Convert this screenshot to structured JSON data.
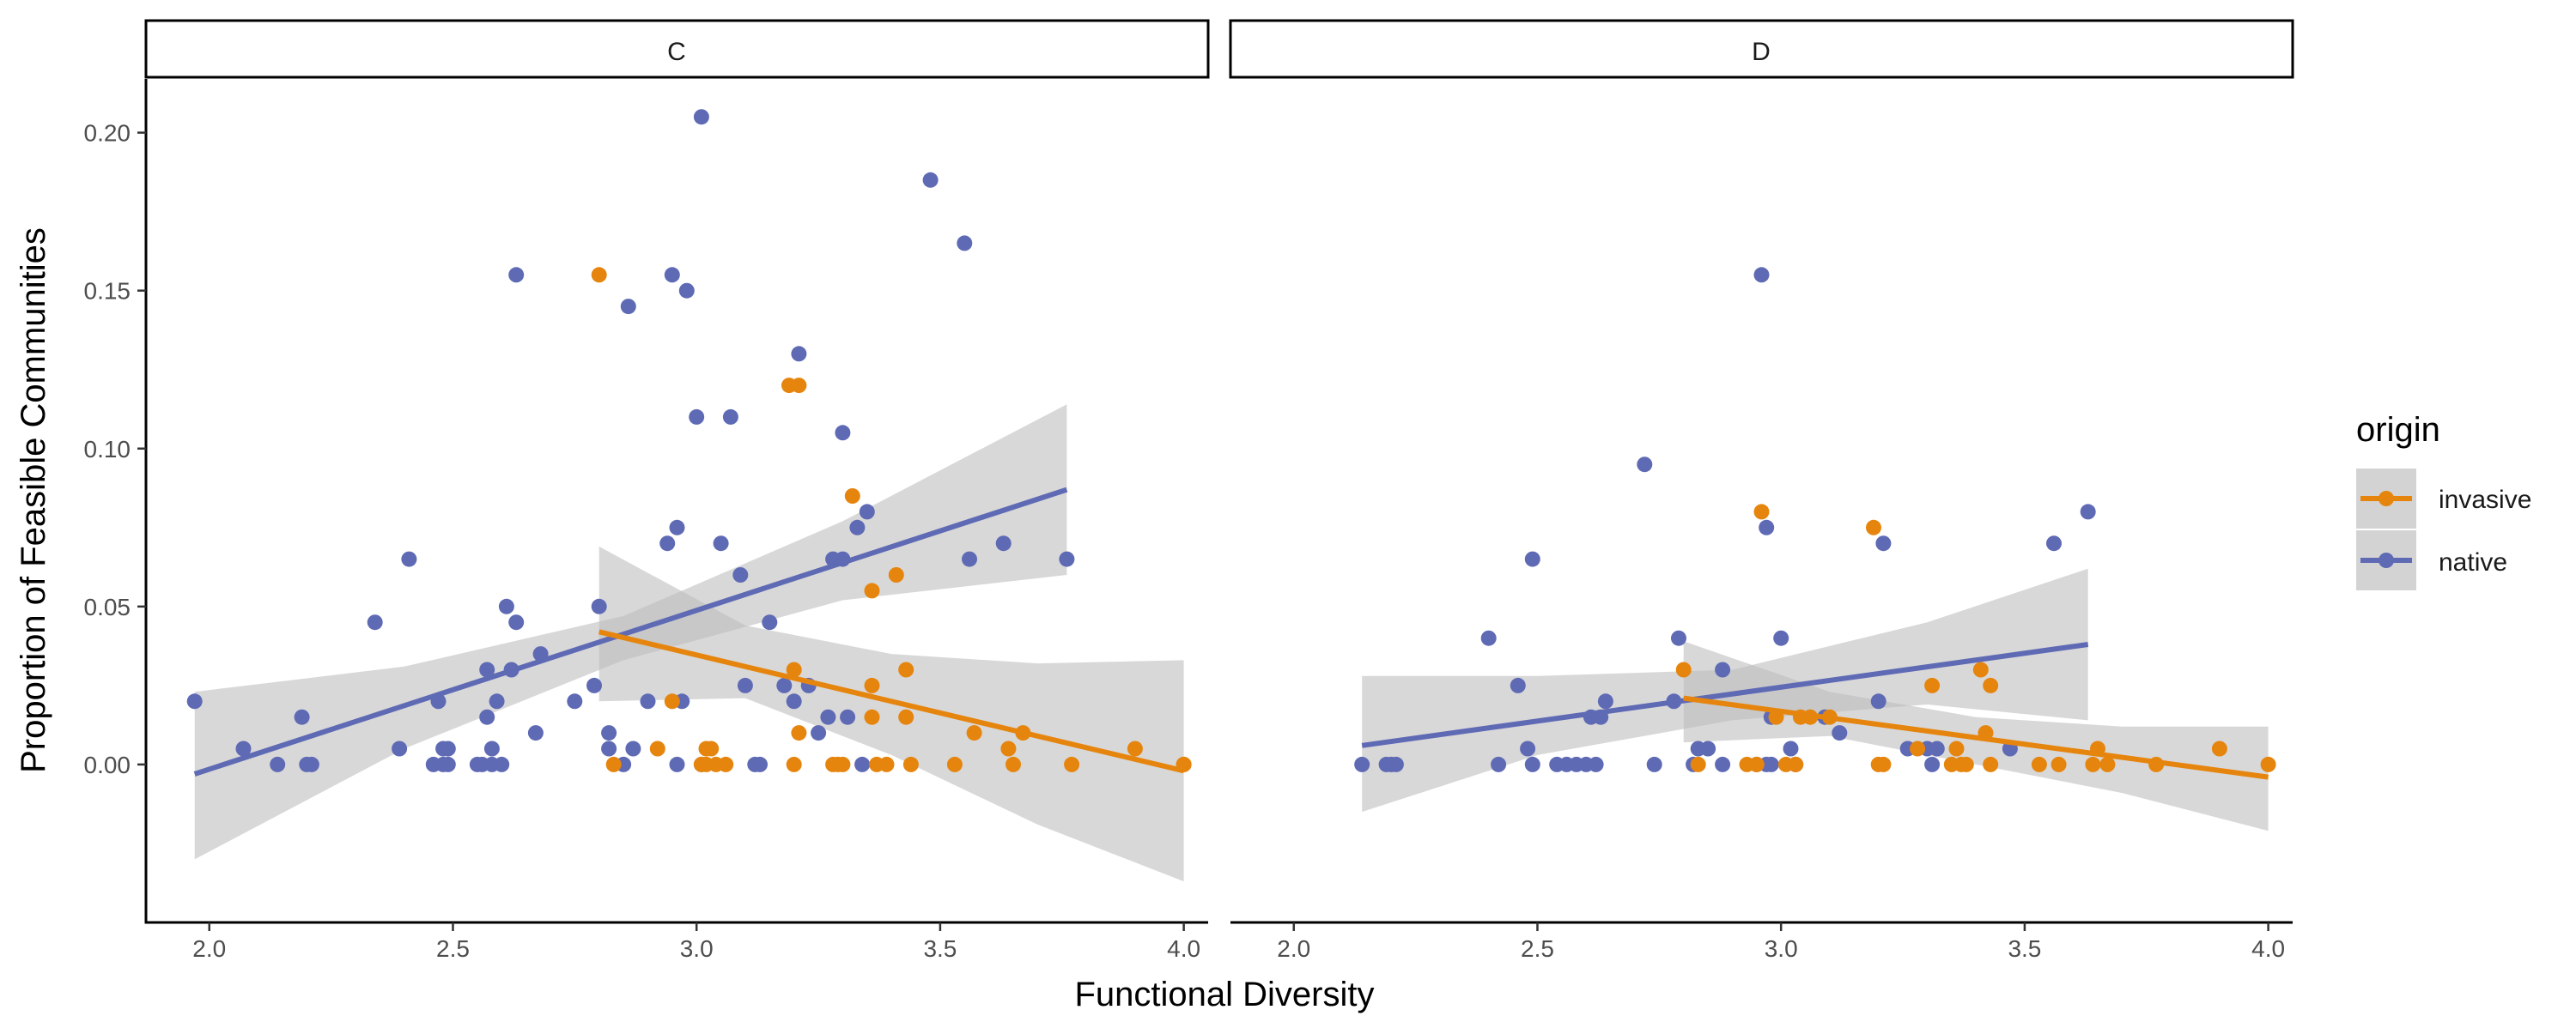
{
  "chart_data": {
    "type": "scatter",
    "xlabel": "Functional Diversity",
    "ylabel": "Proportion of Feasible Communities",
    "xlim": [
      1.87,
      4.05
    ],
    "ylim": [
      -0.05,
      0.217
    ],
    "x_ticks": [
      2.0,
      2.5,
      3.0,
      3.5,
      4.0
    ],
    "x_tick_labels": [
      "2.0",
      "2.5",
      "3.0",
      "3.5",
      "4.0"
    ],
    "y_ticks": [
      0.0,
      0.05,
      0.1,
      0.15,
      0.2
    ],
    "y_tick_labels": [
      "0.00",
      "0.05",
      "0.10",
      "0.15",
      "0.20"
    ],
    "grid": false,
    "legend": {
      "title": "origin",
      "placement": "right",
      "entries": [
        {
          "key": "invasive",
          "label": "invasive",
          "color": "#E6850E"
        },
        {
          "key": "native",
          "label": "native",
          "color": "#5F6AB5"
        }
      ]
    },
    "series_colors": {
      "invasive": "#E6850E",
      "native": "#5F6AB5"
    },
    "band_color": "#BEBEBE",
    "panels": [
      {
        "label": "C",
        "points": {
          "native": [
            [
              1.97,
              0.02
            ],
            [
              2.07,
              0.005
            ],
            [
              2.14,
              0.0
            ],
            [
              2.19,
              0.015
            ],
            [
              2.2,
              0.0
            ],
            [
              2.21,
              0.0
            ],
            [
              2.34,
              0.045
            ],
            [
              2.39,
              0.005
            ],
            [
              2.41,
              0.065
            ],
            [
              2.46,
              0.0
            ],
            [
              2.47,
              0.02
            ],
            [
              2.48,
              0.005
            ],
            [
              2.48,
              0.0
            ],
            [
              2.49,
              0.0
            ],
            [
              2.49,
              0.005
            ],
            [
              2.55,
              0.0
            ],
            [
              2.56,
              0.0
            ],
            [
              2.57,
              0.015
            ],
            [
              2.57,
              0.03
            ],
            [
              2.58,
              0.005
            ],
            [
              2.58,
              0.0
            ],
            [
              2.59,
              0.02
            ],
            [
              2.6,
              0.0
            ],
            [
              2.61,
              0.05
            ],
            [
              2.62,
              0.03
            ],
            [
              2.63,
              0.045
            ],
            [
              2.63,
              0.155
            ],
            [
              2.67,
              0.01
            ],
            [
              2.68,
              0.035
            ],
            [
              2.75,
              0.02
            ],
            [
              2.79,
              0.025
            ],
            [
              2.8,
              0.05
            ],
            [
              2.82,
              0.01
            ],
            [
              2.82,
              0.005
            ],
            [
              2.85,
              0.0
            ],
            [
              2.86,
              0.145
            ],
            [
              2.87,
              0.005
            ],
            [
              2.9,
              0.02
            ],
            [
              2.94,
              0.07
            ],
            [
              2.95,
              0.155
            ],
            [
              2.96,
              0.0
            ],
            [
              2.96,
              0.075
            ],
            [
              2.97,
              0.02
            ],
            [
              2.98,
              0.15
            ],
            [
              3.0,
              0.11
            ],
            [
              3.01,
              0.205
            ],
            [
              3.01,
              0.0
            ],
            [
              3.05,
              0.07
            ],
            [
              3.07,
              0.11
            ],
            [
              3.09,
              0.06
            ],
            [
              3.1,
              0.025
            ],
            [
              3.12,
              0.0
            ],
            [
              3.13,
              0.0
            ],
            [
              3.15,
              0.045
            ],
            [
              3.18,
              0.025
            ],
            [
              3.2,
              0.02
            ],
            [
              3.21,
              0.13
            ],
            [
              3.23,
              0.025
            ],
            [
              3.25,
              0.01
            ],
            [
              3.27,
              0.015
            ],
            [
              3.28,
              0.065
            ],
            [
              3.3,
              0.105
            ],
            [
              3.3,
              0.065
            ],
            [
              3.31,
              0.015
            ],
            [
              3.33,
              0.075
            ],
            [
              3.34,
              0.0
            ],
            [
              3.35,
              0.08
            ],
            [
              3.48,
              0.185
            ],
            [
              3.55,
              0.165
            ],
            [
              3.56,
              0.065
            ],
            [
              3.63,
              0.07
            ],
            [
              3.76,
              0.065
            ]
          ],
          "invasive": [
            [
              2.8,
              0.155
            ],
            [
              2.83,
              0.0
            ],
            [
              2.92,
              0.005
            ],
            [
              2.95,
              0.02
            ],
            [
              3.01,
              0.0
            ],
            [
              3.02,
              0.005
            ],
            [
              3.02,
              0.0
            ],
            [
              3.03,
              0.005
            ],
            [
              3.04,
              0.0
            ],
            [
              3.06,
              0.0
            ],
            [
              3.19,
              0.12
            ],
            [
              3.2,
              0.0
            ],
            [
              3.2,
              0.03
            ],
            [
              3.21,
              0.12
            ],
            [
              3.21,
              0.01
            ],
            [
              3.28,
              0.0
            ],
            [
              3.29,
              0.0
            ],
            [
              3.3,
              0.0
            ],
            [
              3.32,
              0.085
            ],
            [
              3.36,
              0.055
            ],
            [
              3.36,
              0.015
            ],
            [
              3.36,
              0.025
            ],
            [
              3.37,
              0.0
            ],
            [
              3.39,
              0.0
            ],
            [
              3.41,
              0.06
            ],
            [
              3.43,
              0.03
            ],
            [
              3.43,
              0.015
            ],
            [
              3.44,
              0.0
            ],
            [
              3.53,
              0.0
            ],
            [
              3.57,
              0.01
            ],
            [
              3.64,
              0.005
            ],
            [
              3.65,
              0.0
            ],
            [
              3.67,
              0.01
            ],
            [
              3.77,
              0.0
            ],
            [
              3.9,
              0.005
            ],
            [
              4.0,
              0.0
            ],
            [
              4.0,
              0.0
            ]
          ]
        },
        "fits": {
          "native": {
            "x": [
              1.97,
              3.76
            ],
            "y": [
              -0.003,
              0.087
            ]
          },
          "invasive": {
            "x": [
              2.8,
              4.0
            ],
            "y": [
              0.042,
              -0.002
            ]
          }
        },
        "bands": {
          "native": {
            "x": [
              1.97,
              2.4,
              2.85,
              3.3,
              3.76
            ],
            "lower": [
              -0.03,
              0.005,
              0.033,
              0.052,
              0.06
            ],
            "upper": [
              0.023,
              0.031,
              0.047,
              0.077,
              0.114
            ]
          },
          "invasive": {
            "x": [
              2.8,
              3.1,
              3.4,
              3.7,
              4.0
            ],
            "lower": [
              0.02,
              0.021,
              0.003,
              -0.019,
              -0.037
            ],
            "upper": [
              0.069,
              0.044,
              0.035,
              0.032,
              0.033
            ]
          }
        }
      },
      {
        "label": "D",
        "points": {
          "native": [
            [
              2.14,
              0.0
            ],
            [
              2.19,
              0.0
            ],
            [
              2.2,
              0.0
            ],
            [
              2.21,
              0.0
            ],
            [
              2.4,
              0.04
            ],
            [
              2.42,
              0.0
            ],
            [
              2.46,
              0.025
            ],
            [
              2.48,
              0.005
            ],
            [
              2.49,
              0.0
            ],
            [
              2.49,
              0.065
            ],
            [
              2.54,
              0.0
            ],
            [
              2.56,
              0.0
            ],
            [
              2.58,
              0.0
            ],
            [
              2.6,
              0.0
            ],
            [
              2.61,
              0.015
            ],
            [
              2.62,
              0.0
            ],
            [
              2.63,
              0.015
            ],
            [
              2.64,
              0.02
            ],
            [
              2.72,
              0.095
            ],
            [
              2.74,
              0.0
            ],
            [
              2.78,
              0.02
            ],
            [
              2.79,
              0.04
            ],
            [
              2.82,
              0.0
            ],
            [
              2.83,
              0.005
            ],
            [
              2.85,
              0.005
            ],
            [
              2.88,
              0.03
            ],
            [
              2.88,
              0.0
            ],
            [
              2.95,
              0.0
            ],
            [
              2.96,
              0.155
            ],
            [
              2.97,
              0.0
            ],
            [
              2.97,
              0.075
            ],
            [
              2.98,
              0.0
            ],
            [
              2.98,
              0.015
            ],
            [
              3.0,
              0.04
            ],
            [
              3.02,
              0.005
            ],
            [
              3.03,
              0.0
            ],
            [
              3.09,
              0.015
            ],
            [
              3.12,
              0.01
            ],
            [
              3.21,
              0.07
            ],
            [
              3.2,
              0.02
            ],
            [
              3.26,
              0.005
            ],
            [
              3.3,
              0.005
            ],
            [
              3.31,
              0.0
            ],
            [
              3.32,
              0.005
            ],
            [
              3.47,
              0.005
            ],
            [
              3.56,
              0.07
            ],
            [
              3.63,
              0.08
            ]
          ],
          "invasive": [
            [
              2.8,
              0.03
            ],
            [
              2.83,
              0.0
            ],
            [
              2.93,
              0.0
            ],
            [
              2.95,
              0.0
            ],
            [
              2.96,
              0.08
            ],
            [
              2.99,
              0.015
            ],
            [
              3.01,
              0.0
            ],
            [
              3.03,
              0.0
            ],
            [
              3.04,
              0.015
            ],
            [
              3.06,
              0.015
            ],
            [
              3.1,
              0.015
            ],
            [
              3.19,
              0.075
            ],
            [
              3.2,
              0.0
            ],
            [
              3.21,
              0.0
            ],
            [
              3.28,
              0.005
            ],
            [
              3.31,
              0.025
            ],
            [
              3.35,
              0.0
            ],
            [
              3.36,
              0.005
            ],
            [
              3.37,
              0.0
            ],
            [
              3.38,
              0.0
            ],
            [
              3.41,
              0.03
            ],
            [
              3.42,
              0.01
            ],
            [
              3.43,
              0.025
            ],
            [
              3.43,
              0.0
            ],
            [
              3.53,
              0.0
            ],
            [
              3.57,
              0.0
            ],
            [
              3.64,
              0.0
            ],
            [
              3.65,
              0.005
            ],
            [
              3.67,
              0.0
            ],
            [
              3.77,
              0.0
            ],
            [
              3.9,
              0.005
            ],
            [
              4.0,
              0.0
            ]
          ]
        },
        "fits": {
          "native": {
            "x": [
              2.14,
              3.63
            ],
            "y": [
              0.006,
              0.038
            ]
          },
          "invasive": {
            "x": [
              2.8,
              4.0
            ],
            "y": [
              0.021,
              -0.004
            ]
          }
        },
        "bands": {
          "native": {
            "x": [
              2.14,
              2.5,
              2.9,
              3.3,
              3.63
            ],
            "lower": [
              -0.015,
              0.003,
              0.014,
              0.019,
              0.014
            ],
            "upper": [
              0.028,
              0.028,
              0.03,
              0.045,
              0.062
            ]
          },
          "invasive": {
            "x": [
              2.8,
              3.1,
              3.4,
              3.7,
              4.0
            ],
            "lower": [
              0.007,
              0.009,
              0.0,
              -0.009,
              -0.021
            ],
            "upper": [
              0.039,
              0.023,
              0.015,
              0.012,
              0.012
            ]
          }
        }
      }
    ]
  }
}
